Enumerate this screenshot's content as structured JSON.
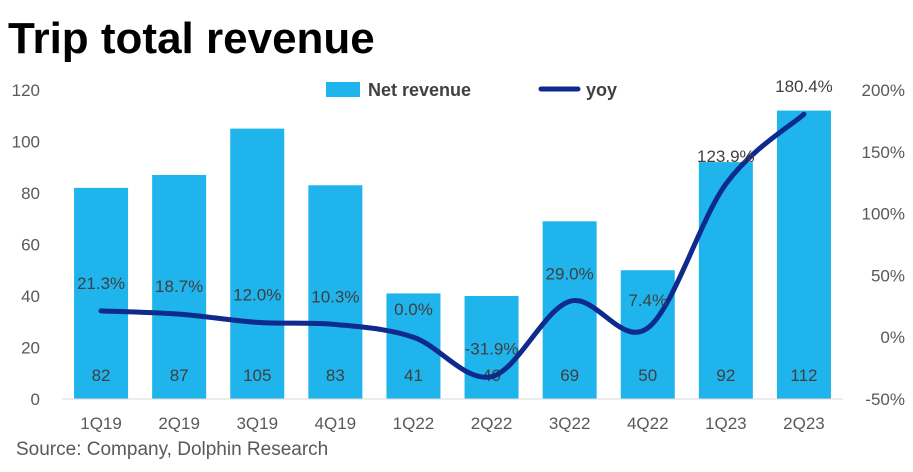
{
  "chart_data": {
    "type": "bar",
    "title": "Trip total revenue",
    "source": "Source: Company, Dolphin Research",
    "categories": [
      "1Q19",
      "2Q19",
      "3Q19",
      "4Q19",
      "1Q22",
      "2Q22",
      "3Q22",
      "4Q22",
      "1Q23",
      "2Q23"
    ],
    "series": [
      {
        "name": "Net revenue",
        "type": "bar",
        "axis": "left",
        "color": "#1FB4EC",
        "values": [
          82,
          87,
          105,
          83,
          41,
          40,
          69,
          50,
          92,
          112
        ],
        "labels": [
          "82",
          "87",
          "105",
          "83",
          "41",
          "40",
          "69",
          "50",
          "92",
          "112"
        ]
      },
      {
        "name": "yoy",
        "type": "line",
        "axis": "right",
        "color": "#0E2A8C",
        "values": [
          21.3,
          18.7,
          12.0,
          10.3,
          0.0,
          -31.9,
          29.0,
          7.4,
          123.9,
          180.4
        ],
        "labels": [
          "21.3%",
          "18.7%",
          "12.0%",
          "10.3%",
          "0.0%",
          "-31.9%",
          "29.0%",
          "7.4%",
          "123.9%",
          "180.4%"
        ]
      }
    ],
    "y_left": {
      "min": 0,
      "max": 120,
      "ticks": [
        "0",
        "20",
        "40",
        "60",
        "80",
        "100",
        "120"
      ]
    },
    "y_right": {
      "min": -50,
      "max": 200,
      "ticks": [
        "-50%",
        "0%",
        "50%",
        "100%",
        "150%",
        "200%"
      ]
    },
    "legend": {
      "position": "top-center"
    },
    "grid": false
  }
}
